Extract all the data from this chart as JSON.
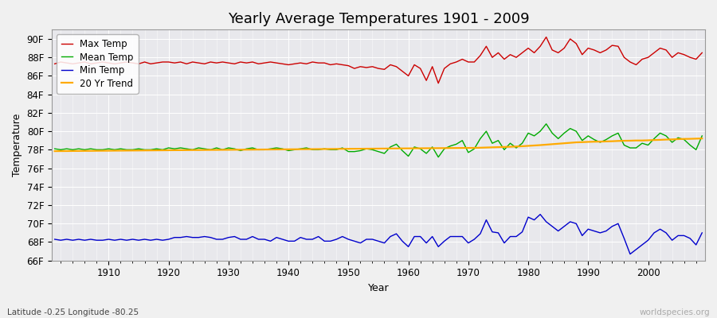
{
  "title": "Yearly Average Temperatures 1901 - 2009",
  "xlabel": "Year",
  "ylabel": "Temperature",
  "subtitle": "Latitude -0.25 Longitude -80.25",
  "watermark": "worldspecies.org",
  "years": [
    1901,
    1902,
    1903,
    1904,
    1905,
    1906,
    1907,
    1908,
    1909,
    1910,
    1911,
    1912,
    1913,
    1914,
    1915,
    1916,
    1917,
    1918,
    1919,
    1920,
    1921,
    1922,
    1923,
    1924,
    1925,
    1926,
    1927,
    1928,
    1929,
    1930,
    1931,
    1932,
    1933,
    1934,
    1935,
    1936,
    1937,
    1938,
    1939,
    1940,
    1941,
    1942,
    1943,
    1944,
    1945,
    1946,
    1947,
    1948,
    1949,
    1950,
    1951,
    1952,
    1953,
    1954,
    1955,
    1956,
    1957,
    1958,
    1959,
    1960,
    1961,
    1962,
    1963,
    1964,
    1965,
    1966,
    1967,
    1968,
    1969,
    1970,
    1971,
    1972,
    1973,
    1974,
    1975,
    1976,
    1977,
    1978,
    1979,
    1980,
    1981,
    1982,
    1983,
    1984,
    1985,
    1986,
    1987,
    1988,
    1989,
    1990,
    1991,
    1992,
    1993,
    1994,
    1995,
    1996,
    1997,
    1998,
    1999,
    2000,
    2001,
    2002,
    2003,
    2004,
    2005,
    2006,
    2007,
    2008,
    2009
  ],
  "max_temp": [
    87.3,
    87.5,
    87.4,
    87.3,
    87.4,
    87.5,
    87.3,
    87.4,
    87.5,
    87.4,
    87.3,
    87.4,
    87.5,
    87.4,
    87.3,
    87.5,
    87.3,
    87.4,
    87.5,
    87.5,
    87.4,
    87.5,
    87.3,
    87.5,
    87.4,
    87.3,
    87.5,
    87.4,
    87.5,
    87.4,
    87.3,
    87.5,
    87.4,
    87.5,
    87.3,
    87.4,
    87.5,
    87.4,
    87.3,
    87.2,
    87.3,
    87.4,
    87.3,
    87.5,
    87.4,
    87.4,
    87.2,
    87.3,
    87.2,
    87.1,
    86.8,
    87.0,
    86.9,
    87.0,
    86.8,
    86.7,
    87.2,
    87.0,
    86.5,
    86.0,
    87.2,
    86.8,
    85.5,
    87.0,
    85.2,
    86.8,
    87.3,
    87.5,
    87.8,
    87.5,
    87.5,
    88.2,
    89.2,
    88.0,
    88.5,
    87.8,
    88.3,
    88.0,
    88.5,
    89.0,
    88.5,
    89.2,
    90.2,
    88.8,
    88.5,
    89.0,
    90.0,
    89.5,
    88.3,
    89.0,
    88.8,
    88.5,
    88.8,
    89.3,
    89.2,
    88.0,
    87.5,
    87.2,
    87.8,
    88.0,
    88.5,
    89.0,
    88.8,
    88.0,
    88.5,
    88.3,
    88.0,
    87.8,
    88.5
  ],
  "mean_temp": [
    78.1,
    78.0,
    78.1,
    78.0,
    78.1,
    78.0,
    78.1,
    78.0,
    78.0,
    78.1,
    78.0,
    78.1,
    78.0,
    78.0,
    78.1,
    78.0,
    78.0,
    78.1,
    78.0,
    78.2,
    78.1,
    78.2,
    78.1,
    78.0,
    78.2,
    78.1,
    78.0,
    78.2,
    78.0,
    78.2,
    78.1,
    77.9,
    78.1,
    78.2,
    78.0,
    78.0,
    78.1,
    78.2,
    78.1,
    77.9,
    78.0,
    78.1,
    78.2,
    78.0,
    78.0,
    78.1,
    78.0,
    78.0,
    78.2,
    77.8,
    77.8,
    77.9,
    78.1,
    78.0,
    77.8,
    77.6,
    78.3,
    78.6,
    77.9,
    77.3,
    78.3,
    78.1,
    77.6,
    78.3,
    77.2,
    78.1,
    78.4,
    78.6,
    79.0,
    77.7,
    78.1,
    79.2,
    80.0,
    78.7,
    79.0,
    78.0,
    78.7,
    78.2,
    78.7,
    79.8,
    79.5,
    80.0,
    80.8,
    79.8,
    79.2,
    79.8,
    80.3,
    80.0,
    79.0,
    79.5,
    79.1,
    78.8,
    79.1,
    79.5,
    79.8,
    78.5,
    78.2,
    78.2,
    78.7,
    78.5,
    79.2,
    79.8,
    79.5,
    78.8,
    79.3,
    79.1,
    78.5,
    78.0,
    79.5
  ],
  "min_temp": [
    68.3,
    68.2,
    68.3,
    68.2,
    68.3,
    68.2,
    68.3,
    68.2,
    68.2,
    68.3,
    68.2,
    68.3,
    68.2,
    68.3,
    68.2,
    68.3,
    68.2,
    68.3,
    68.2,
    68.3,
    68.5,
    68.5,
    68.6,
    68.5,
    68.5,
    68.6,
    68.5,
    68.3,
    68.3,
    68.5,
    68.6,
    68.3,
    68.3,
    68.6,
    68.3,
    68.3,
    68.1,
    68.5,
    68.3,
    68.1,
    68.1,
    68.5,
    68.3,
    68.3,
    68.6,
    68.1,
    68.1,
    68.3,
    68.6,
    68.3,
    68.1,
    67.9,
    68.3,
    68.3,
    68.1,
    67.9,
    68.6,
    68.9,
    68.1,
    67.5,
    68.6,
    68.6,
    67.9,
    68.6,
    67.5,
    68.1,
    68.6,
    68.6,
    68.6,
    67.9,
    68.3,
    68.9,
    70.4,
    69.1,
    69.0,
    67.9,
    68.6,
    68.6,
    69.1,
    70.7,
    70.4,
    71.0,
    70.2,
    69.7,
    69.2,
    69.7,
    70.2,
    70.0,
    68.7,
    69.4,
    69.2,
    69.0,
    69.2,
    69.7,
    70.0,
    68.4,
    66.7,
    67.2,
    67.7,
    68.2,
    69.0,
    69.4,
    69.0,
    68.2,
    68.7,
    68.7,
    68.4,
    67.7,
    69.0
  ],
  "trend_temp": [
    77.85,
    77.855,
    77.86,
    77.865,
    77.87,
    77.875,
    77.88,
    77.885,
    77.89,
    77.895,
    77.9,
    77.905,
    77.91,
    77.915,
    77.92,
    77.925,
    77.93,
    77.935,
    77.94,
    77.945,
    77.95,
    77.955,
    77.96,
    77.965,
    77.97,
    77.975,
    77.98,
    77.985,
    77.99,
    77.995,
    78.0,
    78.005,
    78.01,
    78.015,
    78.02,
    78.025,
    78.03,
    78.035,
    78.04,
    78.045,
    78.05,
    78.055,
    78.06,
    78.065,
    78.07,
    78.075,
    78.08,
    78.085,
    78.09,
    78.095,
    78.1,
    78.105,
    78.11,
    78.115,
    78.12,
    78.125,
    78.13,
    78.135,
    78.14,
    78.145,
    78.15,
    78.155,
    78.16,
    78.165,
    78.17,
    78.175,
    78.18,
    78.185,
    78.19,
    78.195,
    78.2,
    78.22,
    78.24,
    78.26,
    78.28,
    78.3,
    78.32,
    78.35,
    78.38,
    78.42,
    78.46,
    78.5,
    78.55,
    78.6,
    78.65,
    78.7,
    78.75,
    78.8,
    78.82,
    78.85,
    78.87,
    78.88,
    78.9,
    78.92,
    78.95,
    78.97,
    78.98,
    79.0,
    79.0,
    79.02,
    79.05,
    79.07,
    79.1,
    79.12,
    79.15,
    79.17,
    79.18,
    79.2,
    79.22
  ],
  "max_color": "#cc0000",
  "mean_color": "#00aa00",
  "min_color": "#0000cc",
  "trend_color": "#ffaa00",
  "bg_color": "#f0f0f0",
  "plot_bg_color": "#e8e8ec",
  "grid_color": "#ffffff",
  "ylim": [
    66,
    91
  ],
  "yticks": [
    66,
    68,
    70,
    72,
    74,
    76,
    78,
    80,
    82,
    84,
    86,
    88,
    90
  ],
  "ytick_labels": [
    "66F",
    "68F",
    "70F",
    "72F",
    "74F",
    "76F",
    "78F",
    "80F",
    "82F",
    "84F",
    "86F",
    "88F",
    "90F"
  ],
  "xticks": [
    1910,
    1920,
    1930,
    1940,
    1950,
    1960,
    1970,
    1980,
    1990,
    2000
  ],
  "title_fontsize": 13,
  "label_fontsize": 9,
  "tick_fontsize": 8.5,
  "legend_fontsize": 8.5,
  "linewidth": 1.0
}
